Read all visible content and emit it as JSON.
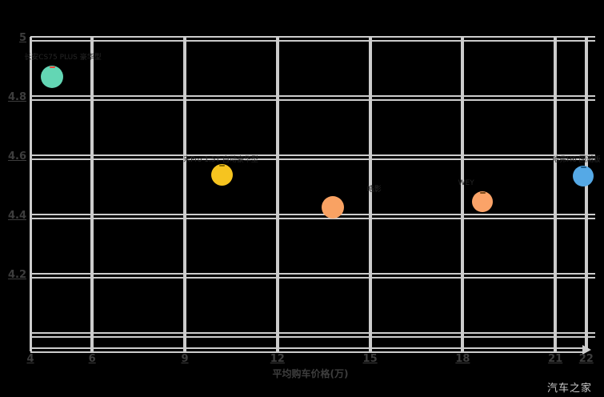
{
  "page": {
    "background": "#000000"
  },
  "watermark": "汽车之家",
  "chart_data": {
    "type": "scatter",
    "title": "",
    "xlabel": "平均购车价格(万)",
    "ylabel": "",
    "xlim": [
      4,
      22.3
    ],
    "ylim": [
      3.95,
      5.0
    ],
    "x_ticks": [
      4,
      6,
      9,
      12,
      15,
      18,
      21,
      22
    ],
    "y_ticks": [
      "5",
      "4.8",
      "4.6",
      "4.4",
      "4.2"
    ],
    "y_tick_values": [
      5,
      4.8,
      4.6,
      4.4,
      4.2
    ],
    "y_grid_unlabeled": [
      4.0
    ],
    "grid": true,
    "legend": false,
    "colors": {
      "grid": "#cccccc",
      "tick_label": "#3d3d3d",
      "annotation": "#262626",
      "watermark": "#c9c9c9",
      "background": "#000000"
    },
    "points": [
      {
        "x": 4.7,
        "y": 4.87,
        "r": 14,
        "color": "#63d6b4",
        "top_mark": "#e8453c"
      },
      {
        "x": 10.2,
        "y": 4.54,
        "r": 13.5,
        "color": "#f6c41f",
        "top_mark": "#8a6d00"
      },
      {
        "x": 13.8,
        "y": 4.43,
        "r": 14,
        "color": "#f9a263",
        "top_mark": ""
      },
      {
        "x": 18.65,
        "y": 4.45,
        "r": 13,
        "color": "#fba368",
        "top_mark": "#7a4a1a"
      },
      {
        "x": 21.9,
        "y": 4.535,
        "r": 13,
        "color": "#55a9e6",
        "top_mark": "#1a5a8a"
      }
    ],
    "annotations": [
      {
        "x": 3.8,
        "y": 4.935,
        "text": "长安CS75 PLUS 豪华型"
      },
      {
        "x": 8.95,
        "y": 4.59,
        "text": "宋Pro 1.5T 自动豪华型"
      },
      {
        "x": 14.9,
        "y": 4.49,
        "text": "皓影"
      },
      {
        "x": 17.85,
        "y": 4.51,
        "text": "WEY"
      },
      {
        "x": 20.9,
        "y": 4.59,
        "text": "哈弗H6 国潮版"
      }
    ]
  }
}
